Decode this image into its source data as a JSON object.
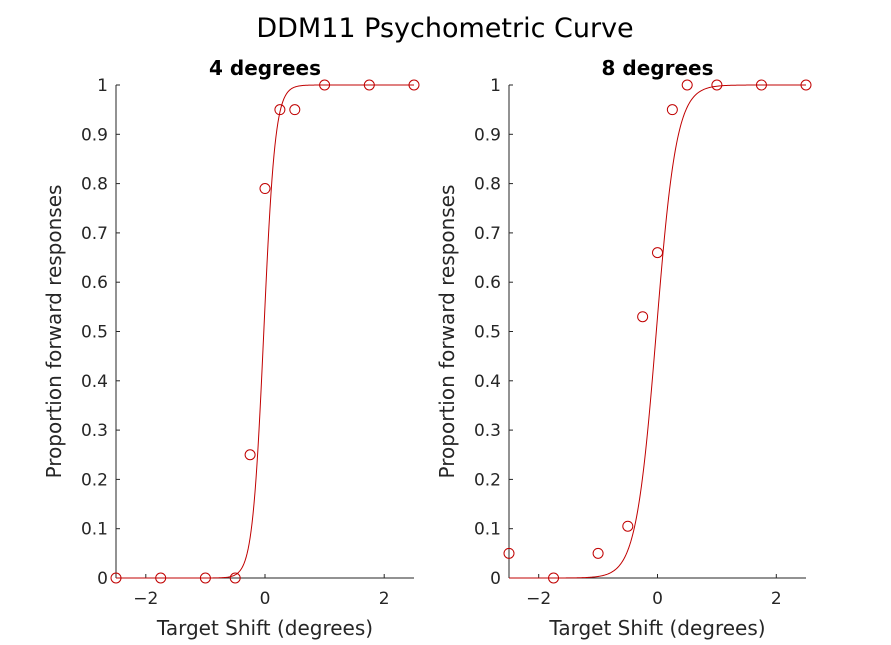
{
  "figure": {
    "title": "DDM11 Psychometric Curve",
    "series_color": "#c00000",
    "axis_color": "#262626"
  },
  "chart_data": [
    {
      "type": "scatter",
      "title": "4 degrees",
      "xlabel": "Target Shift (degrees)",
      "ylabel": "Proportion forward responses",
      "xlim": [
        -2.5,
        2.5
      ],
      "ylim": [
        0,
        1
      ],
      "xticks": [
        -2,
        0,
        2
      ],
      "yticks": [
        0,
        0.1,
        0.2,
        0.3,
        0.4,
        0.5,
        0.6,
        0.7,
        0.8,
        0.9,
        1
      ],
      "grid": false,
      "points": {
        "x": [
          -2.5,
          -1.75,
          -1.0,
          -0.5,
          -0.25,
          0.0,
          0.25,
          0.5,
          1.0,
          1.75,
          2.5
        ],
        "y": [
          0,
          0,
          0,
          0,
          0.25,
          0.79,
          0.95,
          0.95,
          1.0,
          1.0,
          1.0
        ]
      },
      "fit": {
        "model": "logistic",
        "mu": -0.02,
        "sigma": 0.095
      }
    },
    {
      "type": "scatter",
      "title": "8 degrees",
      "xlabel": "Target Shift (degrees)",
      "ylabel": "Proportion forward responses",
      "xlim": [
        -2.5,
        2.5
      ],
      "ylim": [
        0,
        1
      ],
      "xticks": [
        -2,
        0,
        2
      ],
      "yticks": [
        0,
        0.1,
        0.2,
        0.3,
        0.4,
        0.5,
        0.6,
        0.7,
        0.8,
        0.9,
        1
      ],
      "grid": false,
      "points": {
        "x": [
          -2.5,
          -1.75,
          -1.0,
          -0.5,
          -0.25,
          0.0,
          0.25,
          0.5,
          1.0,
          1.75,
          2.5
        ],
        "y": [
          0.05,
          0,
          0.05,
          0.105,
          0.53,
          0.66,
          0.95,
          1.0,
          1.0,
          1.0,
          1.0
        ]
      },
      "fit": {
        "model": "logistic",
        "mu": -0.02,
        "sigma": 0.17
      }
    }
  ]
}
